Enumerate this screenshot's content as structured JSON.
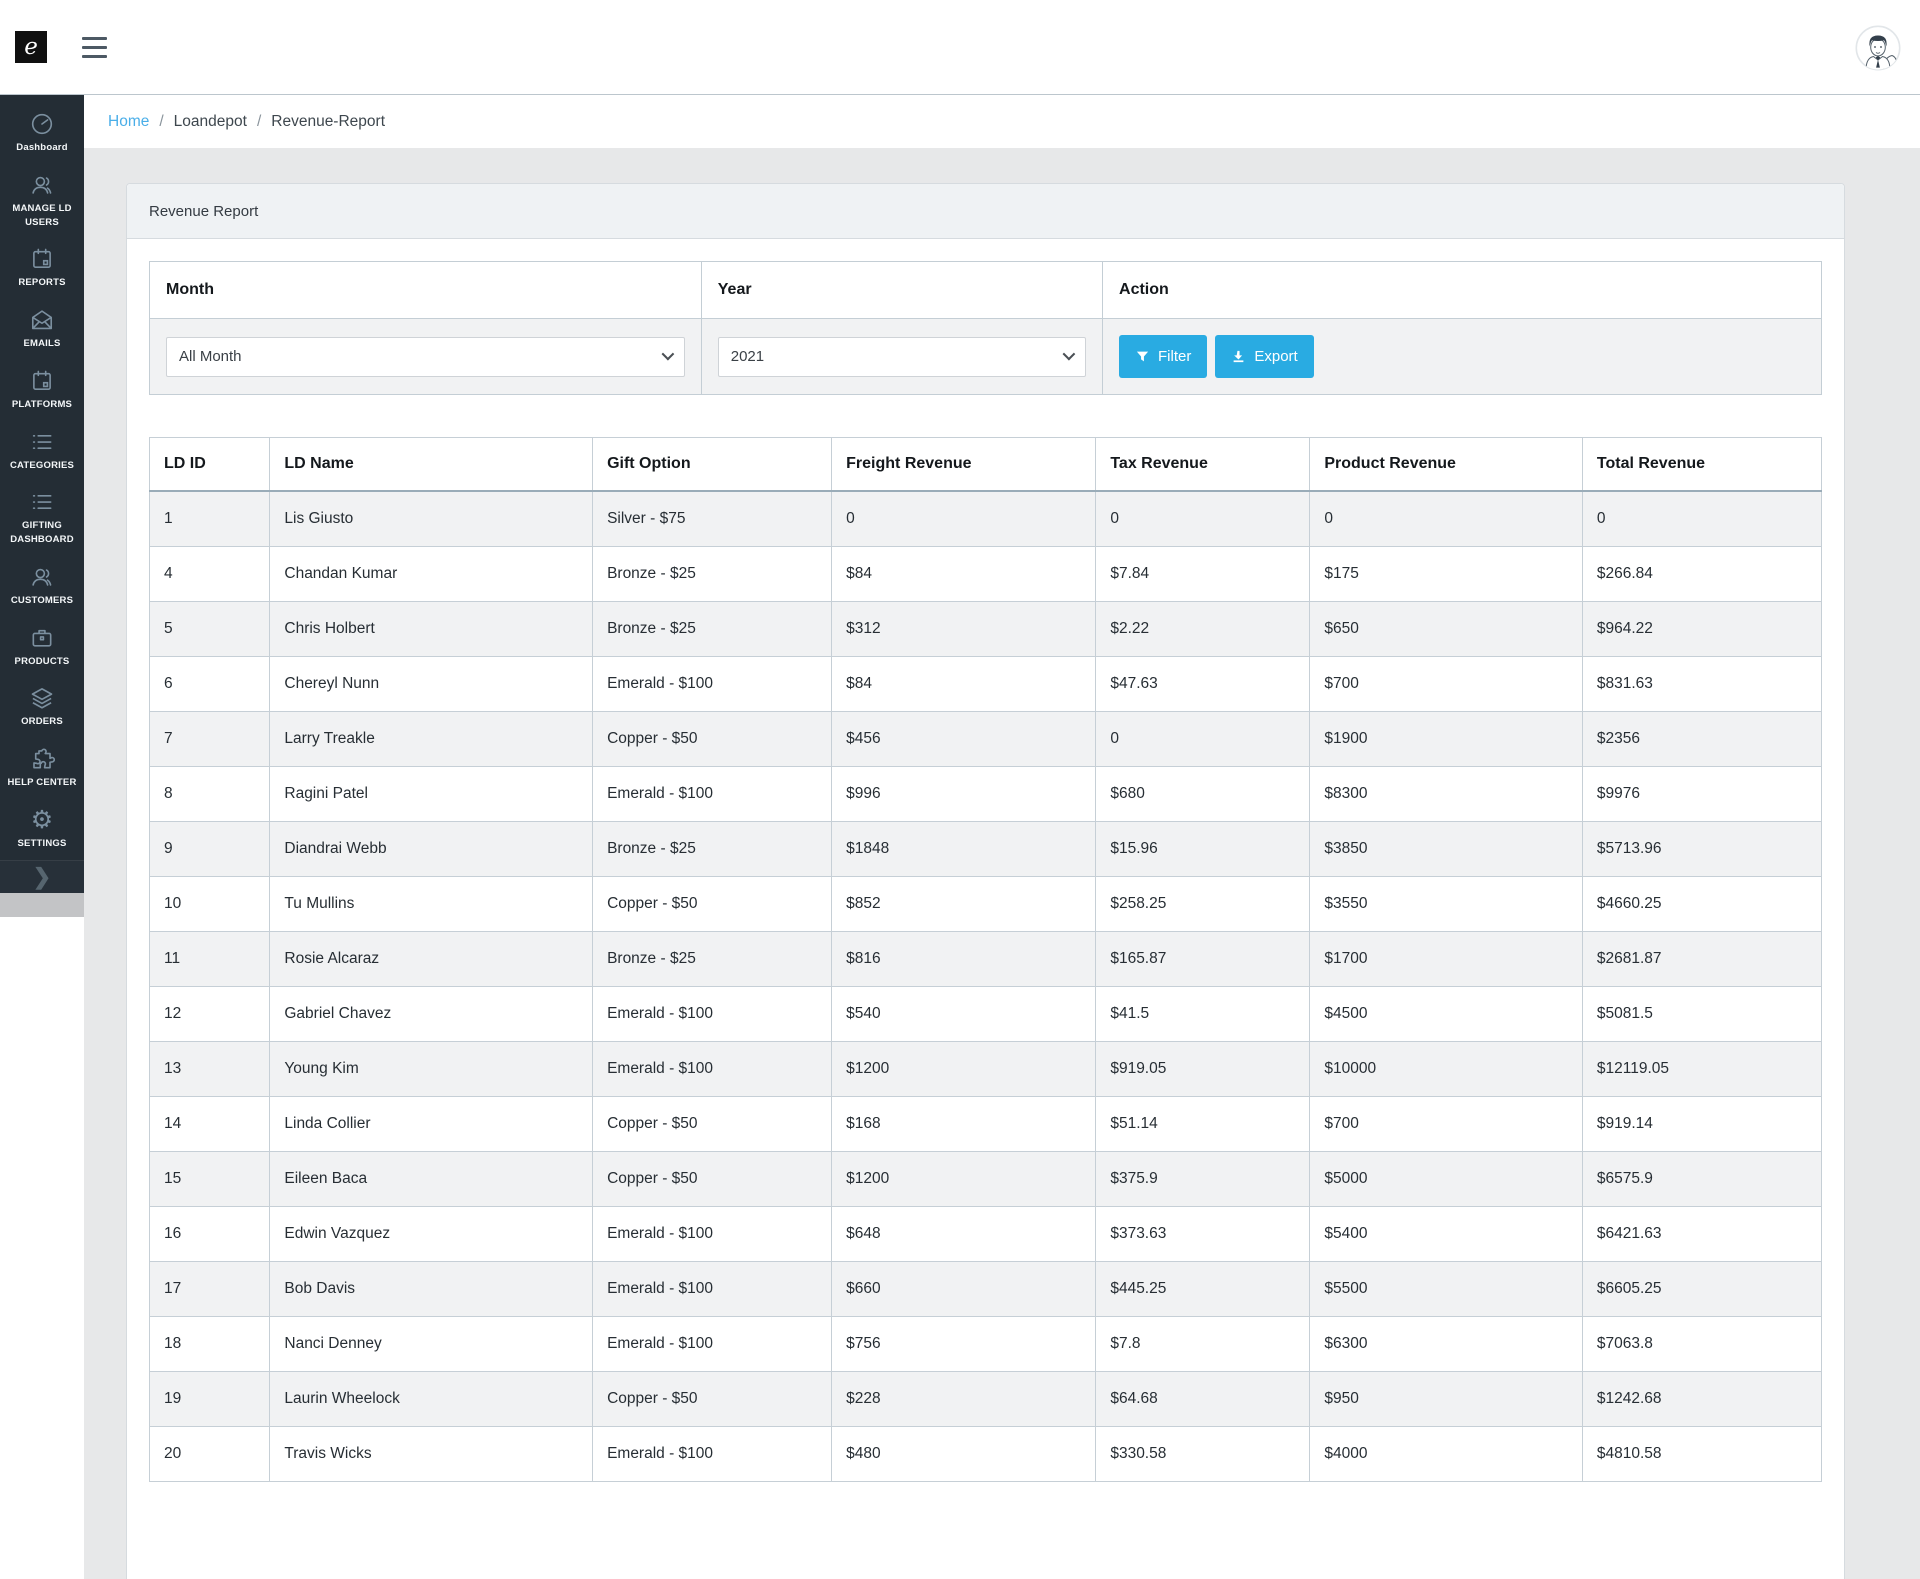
{
  "topbar": {
    "logo_text": "e"
  },
  "breadcrumb": {
    "separator": "/",
    "items": [
      {
        "label": "Home",
        "link": true
      },
      {
        "label": "Loandepot",
        "link": false
      },
      {
        "label": "Revenue-Report",
        "link": false
      }
    ]
  },
  "sidebar": {
    "items": [
      {
        "label": "Dashboard",
        "icon": "dashboard-icon"
      },
      {
        "label": "MANAGE LD USERS",
        "icon": "users-icon"
      },
      {
        "label": "REPORTS",
        "icon": "calendar-icon"
      },
      {
        "label": "EMAILS",
        "icon": "email-icon"
      },
      {
        "label": "PLATFORMS",
        "icon": "calendar-icon"
      },
      {
        "label": "CATEGORIES",
        "icon": "list-icon"
      },
      {
        "label": "GIFTING DASHBOARD",
        "icon": "list-icon"
      },
      {
        "label": "CUSTOMERS",
        "icon": "users-icon"
      },
      {
        "label": "PRODUCTS",
        "icon": "briefcase-icon"
      },
      {
        "label": "ORDERS",
        "icon": "layers-icon"
      },
      {
        "label": "HELP CENTER",
        "icon": "puzzle-icon"
      },
      {
        "label": "SETTINGS",
        "icon": "gear-icon"
      }
    ],
    "expand_chevron": "❯"
  },
  "card": {
    "title": "Revenue Report"
  },
  "filters": {
    "headers": [
      "Month",
      "Year",
      "Action"
    ],
    "month_value": "All Month",
    "year_value": "2021",
    "filter_button": "Filter",
    "export_button": "Export"
  },
  "colors": {
    "accent": "#29abe2",
    "link": "#4aaee8",
    "sidebar_bg": "#242d35",
    "stripe": "#f1f2f3"
  },
  "table": {
    "headers": [
      "LD ID",
      "LD Name",
      "Gift Option",
      "Freight Revenue",
      "Tax Revenue",
      "Product Revenue",
      "Total Revenue"
    ],
    "rows": [
      [
        "1",
        "Lis Giusto",
        "Silver - $75",
        "0",
        "0",
        "0",
        "0"
      ],
      [
        "4",
        "Chandan Kumar",
        "Bronze - $25",
        "$84",
        "$7.84",
        "$175",
        "$266.84"
      ],
      [
        "5",
        "Chris Holbert",
        "Bronze - $25",
        "$312",
        "$2.22",
        "$650",
        "$964.22"
      ],
      [
        "6",
        "Chereyl Nunn",
        "Emerald - $100",
        "$84",
        "$47.63",
        "$700",
        "$831.63"
      ],
      [
        "7",
        "Larry Treakle",
        "Copper - $50",
        "$456",
        "0",
        "$1900",
        "$2356"
      ],
      [
        "8",
        "Ragini Patel",
        "Emerald - $100",
        "$996",
        "$680",
        "$8300",
        "$9976"
      ],
      [
        "9",
        "Diandrai Webb",
        "Bronze - $25",
        "$1848",
        "$15.96",
        "$3850",
        "$5713.96"
      ],
      [
        "10",
        "Tu Mullins",
        "Copper - $50",
        "$852",
        "$258.25",
        "$3550",
        "$4660.25"
      ],
      [
        "11",
        "Rosie Alcaraz",
        "Bronze - $25",
        "$816",
        "$165.87",
        "$1700",
        "$2681.87"
      ],
      [
        "12",
        "Gabriel Chavez",
        "Emerald - $100",
        "$540",
        "$41.5",
        "$4500",
        "$5081.5"
      ],
      [
        "13",
        "Young Kim",
        "Emerald - $100",
        "$1200",
        "$919.05",
        "$10000",
        "$12119.05"
      ],
      [
        "14",
        "Linda Collier",
        "Copper - $50",
        "$168",
        "$51.14",
        "$700",
        "$919.14"
      ],
      [
        "15",
        "Eileen Baca",
        "Copper - $50",
        "$1200",
        "$375.9",
        "$5000",
        "$6575.9"
      ],
      [
        "16",
        "Edwin Vazquez",
        "Emerald - $100",
        "$648",
        "$373.63",
        "$5400",
        "$6421.63"
      ],
      [
        "17",
        "Bob Davis",
        "Emerald - $100",
        "$660",
        "$445.25",
        "$5500",
        "$6605.25"
      ],
      [
        "18",
        "Nanci Denney",
        "Emerald - $100",
        "$756",
        "$7.8",
        "$6300",
        "$7063.8"
      ],
      [
        "19",
        "Laurin Wheelock",
        "Copper - $50",
        "$228",
        "$64.68",
        "$950",
        "$1242.68"
      ],
      [
        "20",
        "Travis Wicks",
        "Emerald - $100",
        "$480",
        "$330.58",
        "$4000",
        "$4810.58"
      ]
    ]
  }
}
